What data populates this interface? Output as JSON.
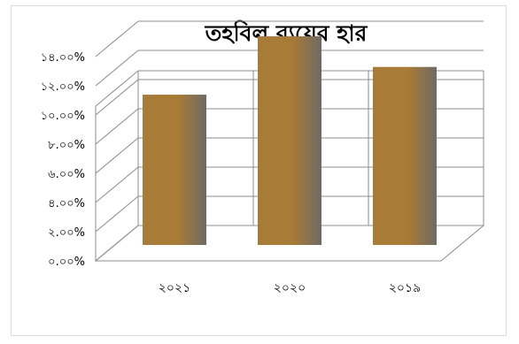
{
  "chart_data": {
    "type": "bar",
    "title": "তহবিল ব্যয়ের হার",
    "categories": [
      "২০২১",
      "২০২০",
      "২০১৯"
    ],
    "values": [
      10.3,
      14.3,
      12.2
    ],
    "ylim": [
      0,
      14
    ],
    "y_ticks": [
      0,
      2,
      4,
      6,
      8,
      10,
      12,
      14
    ],
    "y_tick_labels": [
      "০.০০%",
      "২.০০%",
      "৪.০০%",
      "৬.০০%",
      "৮.০০%",
      "১০.০০%",
      "১২.০০%",
      "১৪.০০%"
    ],
    "grid": true,
    "legend": "none",
    "bar_color": "#a87b36",
    "bar_shade_color": "#6f6a66"
  }
}
